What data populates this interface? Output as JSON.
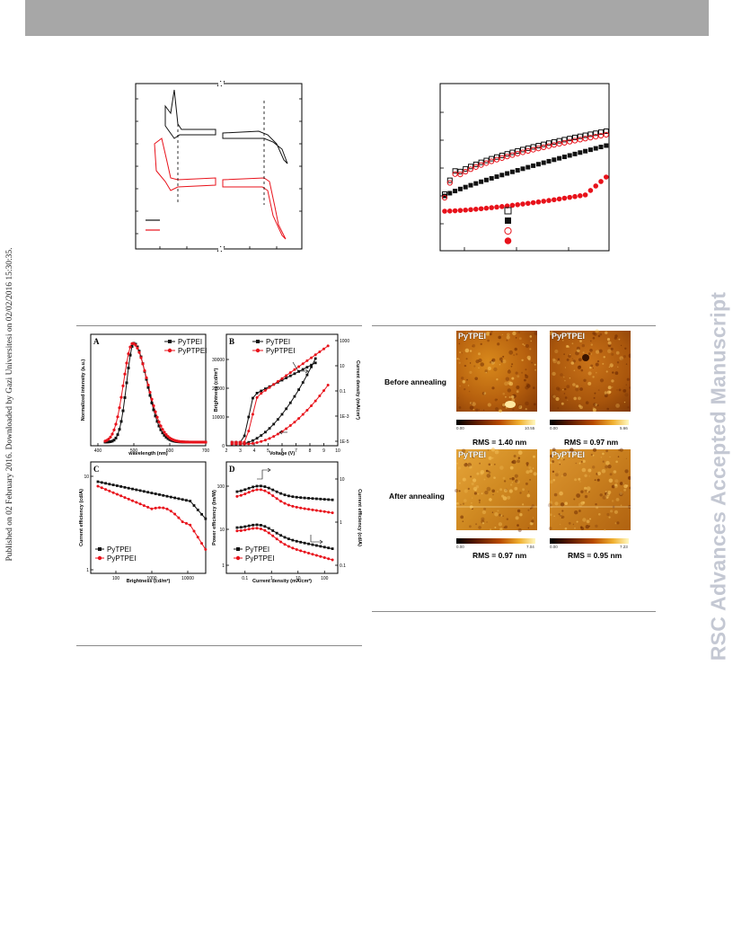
{
  "sidebar_note": "Published on 02 February 2016. Downloaded by Gazi Universitesi on 02/02/2016 15:30:35.",
  "watermark": "RSC Advances Accepted Manuscript",
  "panel_A": {
    "label": "A",
    "xlabel": "wavelength (nm)",
    "ylabel": "Normalized intensity (a.u.)",
    "xticks": [
      "400",
      "500",
      "600",
      "700"
    ],
    "legend": [
      "PyTPEI",
      "PyPTPEI"
    ]
  },
  "panel_B": {
    "label": "B",
    "xlabel": "Voltage (V)",
    "ylabel": "Brightness (cd/m²)",
    "y2label": "Current density (mA/cm²)",
    "xticks": [
      "2",
      "3",
      "4",
      "5",
      "6",
      "7",
      "8",
      "9",
      "10"
    ],
    "yticks": [
      "0",
      "10000",
      "20000",
      "30000"
    ],
    "y2ticks": [
      "1000",
      "10",
      "0.1",
      "1E-3",
      "1E-5"
    ],
    "legend": [
      "PyTPEI",
      "PyPTPEI"
    ]
  },
  "panel_C": {
    "label": "C",
    "xlabel": "Brightness (cd/m²)",
    "ylabel": "Current efficiency (cd/A)",
    "xticks": [
      "100",
      "1000",
      "10000"
    ],
    "yticks": [
      "10",
      "1"
    ],
    "legend": [
      "PyTPEI",
      "PyPTPEI"
    ]
  },
  "panel_D": {
    "label": "D",
    "xlabel": "Current density (mA/cm²)",
    "ylabel": "Power efficiency (lm/W)",
    "y2label": "Current efficiency (cd/A)",
    "xticks": [
      "0.1",
      "1",
      "10",
      "100"
    ],
    "yticks": [
      "100",
      "10",
      "1"
    ],
    "y2ticks": [
      "10",
      "1",
      "0.1"
    ],
    "legend": [
      "PyTPEI",
      "PyPTPEI"
    ]
  },
  "afm": {
    "row_labels": [
      "Before annealing",
      "After annealing"
    ],
    "titles": [
      "PyTPEI",
      "PyPTPEI",
      "PyTPEI",
      "PyPTPEI"
    ],
    "rms": [
      "RMS = 1.40 nm",
      "RMS = 0.97 nm",
      "RMS = 0.97 nm",
      "RMS = 0.95 nm"
    ],
    "scale_min": [
      "0.00",
      "0.00",
      "0.00",
      "0.00"
    ],
    "scale_max": [
      "10.55",
      "5.66",
      "7.04",
      "7.23"
    ]
  },
  "colors": {
    "black_series": "#111111",
    "red_series": "#e8121b",
    "header": "#a7a7a7",
    "watermark": "#c4c8d3"
  }
}
